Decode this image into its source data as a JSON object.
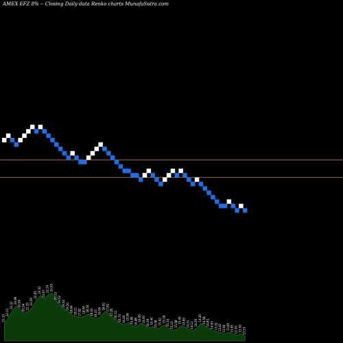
{
  "chart_data": {
    "type": "renko",
    "title": "AMEX  EFZ 8% -- Closing Daily data  Renko  charts MunafaSutra.com",
    "brick_size_percent": 8,
    "colors": {
      "background": "#000000",
      "up_brick": "#ffffff",
      "down_brick": "#1e6fe6",
      "reference_line": "#c87a3c",
      "volume_fill": "#0b3a0b",
      "volume_stroke": "#2c7a2c"
    },
    "bricks": [
      {
        "level": 0,
        "dir": "up"
      },
      {
        "level": 1,
        "dir": "up"
      },
      {
        "level": 0,
        "dir": "down"
      },
      {
        "level": -1,
        "dir": "down"
      },
      {
        "level": 0,
        "dir": "up"
      },
      {
        "level": 1,
        "dir": "up"
      },
      {
        "level": 2,
        "dir": "up"
      },
      {
        "level": 3,
        "dir": "up"
      },
      {
        "level": 2,
        "dir": "down"
      },
      {
        "level": 3,
        "dir": "up"
      },
      {
        "level": 2,
        "dir": "down"
      },
      {
        "level": 1,
        "dir": "down"
      },
      {
        "level": 0,
        "dir": "down"
      },
      {
        "level": -1,
        "dir": "down"
      },
      {
        "level": -2,
        "dir": "down"
      },
      {
        "level": -3,
        "dir": "down"
      },
      {
        "level": -4,
        "dir": "down"
      },
      {
        "level": -3,
        "dir": "up"
      },
      {
        "level": -4,
        "dir": "down"
      },
      {
        "level": -5,
        "dir": "down"
      },
      {
        "level": -5,
        "dir": "down"
      },
      {
        "level": -4,
        "dir": "up"
      },
      {
        "level": -3,
        "dir": "up"
      },
      {
        "level": -2,
        "dir": "up"
      },
      {
        "level": -1,
        "dir": "up"
      },
      {
        "level": -2,
        "dir": "down"
      },
      {
        "level": -3,
        "dir": "down"
      },
      {
        "level": -4,
        "dir": "down"
      },
      {
        "level": -5,
        "dir": "down"
      },
      {
        "level": -6,
        "dir": "down"
      },
      {
        "level": -7,
        "dir": "down"
      },
      {
        "level": -7,
        "dir": "down"
      },
      {
        "level": -8,
        "dir": "down"
      },
      {
        "level": -8,
        "dir": "down"
      },
      {
        "level": -9,
        "dir": "down"
      },
      {
        "level": -8,
        "dir": "up"
      },
      {
        "level": -7,
        "dir": "up"
      },
      {
        "level": -8,
        "dir": "down"
      },
      {
        "level": -9,
        "dir": "down"
      },
      {
        "level": -10,
        "dir": "down"
      },
      {
        "level": -9,
        "dir": "up"
      },
      {
        "level": -8,
        "dir": "up"
      },
      {
        "level": -7,
        "dir": "up"
      },
      {
        "level": -8,
        "dir": "down"
      },
      {
        "level": -7,
        "dir": "up"
      },
      {
        "level": -8,
        "dir": "down"
      },
      {
        "level": -9,
        "dir": "down"
      },
      {
        "level": -10,
        "dir": "down"
      },
      {
        "level": -9,
        "dir": "up"
      },
      {
        "level": -10,
        "dir": "down"
      },
      {
        "level": -11,
        "dir": "down"
      },
      {
        "level": -12,
        "dir": "down"
      },
      {
        "level": -13,
        "dir": "down"
      },
      {
        "level": -14,
        "dir": "down"
      },
      {
        "level": -15,
        "dir": "down"
      },
      {
        "level": -15,
        "dir": "down"
      },
      {
        "level": -14,
        "dir": "up"
      },
      {
        "level": -15,
        "dir": "down"
      },
      {
        "level": -16,
        "dir": "down"
      },
      {
        "level": -15,
        "dir": "up"
      },
      {
        "level": -16,
        "dir": "down"
      }
    ],
    "reference_line_levels": [
      -4.5,
      -8.5
    ],
    "volume_levels": [
      0.3,
      0.4,
      0.52,
      0.6,
      0.55,
      0.48,
      0.5,
      0.58,
      0.7,
      0.78,
      0.72,
      0.8,
      0.82,
      0.68,
      0.62,
      0.55,
      0.5,
      0.45,
      0.42,
      0.4,
      0.44,
      0.46,
      0.4,
      0.38,
      0.42,
      0.5,
      0.48,
      0.4,
      0.36,
      0.3,
      0.28,
      0.32,
      0.26,
      0.24,
      0.3,
      0.28,
      0.22,
      0.25,
      0.2,
      0.24,
      0.28,
      0.22,
      0.18,
      0.2,
      0.26,
      0.24,
      0.2,
      0.18,
      0.22,
      0.3,
      0.26,
      0.22,
      0.18,
      0.16,
      0.14,
      0.12,
      0.15,
      0.12,
      0.1,
      0.12,
      0.08
    ],
    "price_labels": [
      "22.33",
      "22.21",
      "22.32",
      "20.89",
      "20.56",
      "20.54",
      "22.35",
      "23.59",
      "22.05",
      "23.32",
      "23.67",
      "22.14",
      "20.55",
      "20.53",
      "19.52",
      "19.42",
      "19.20",
      "18.66",
      "18.21",
      "17.82",
      "18.04",
      "18.54",
      "18.43",
      "19.15",
      "19.56",
      "18.92",
      "17.82",
      "17.05",
      "16.12",
      "16.73",
      "16.44",
      "15.99",
      "15.82",
      "16.48",
      "16.95",
      "16.91",
      "16.39",
      "15.40",
      "15.08",
      "15.02",
      "15.18",
      "15.34",
      "15.10",
      "15.58",
      "15.45",
      "14.69",
      "14.51",
      "14.12",
      "14.26",
      "14.45",
      "14.58",
      "14.83",
      "14.93",
      "13.31",
      "13.42",
      "13.94",
      "13.95",
      "13.65",
      "13.35",
      "13.50",
      "13.33"
    ]
  }
}
